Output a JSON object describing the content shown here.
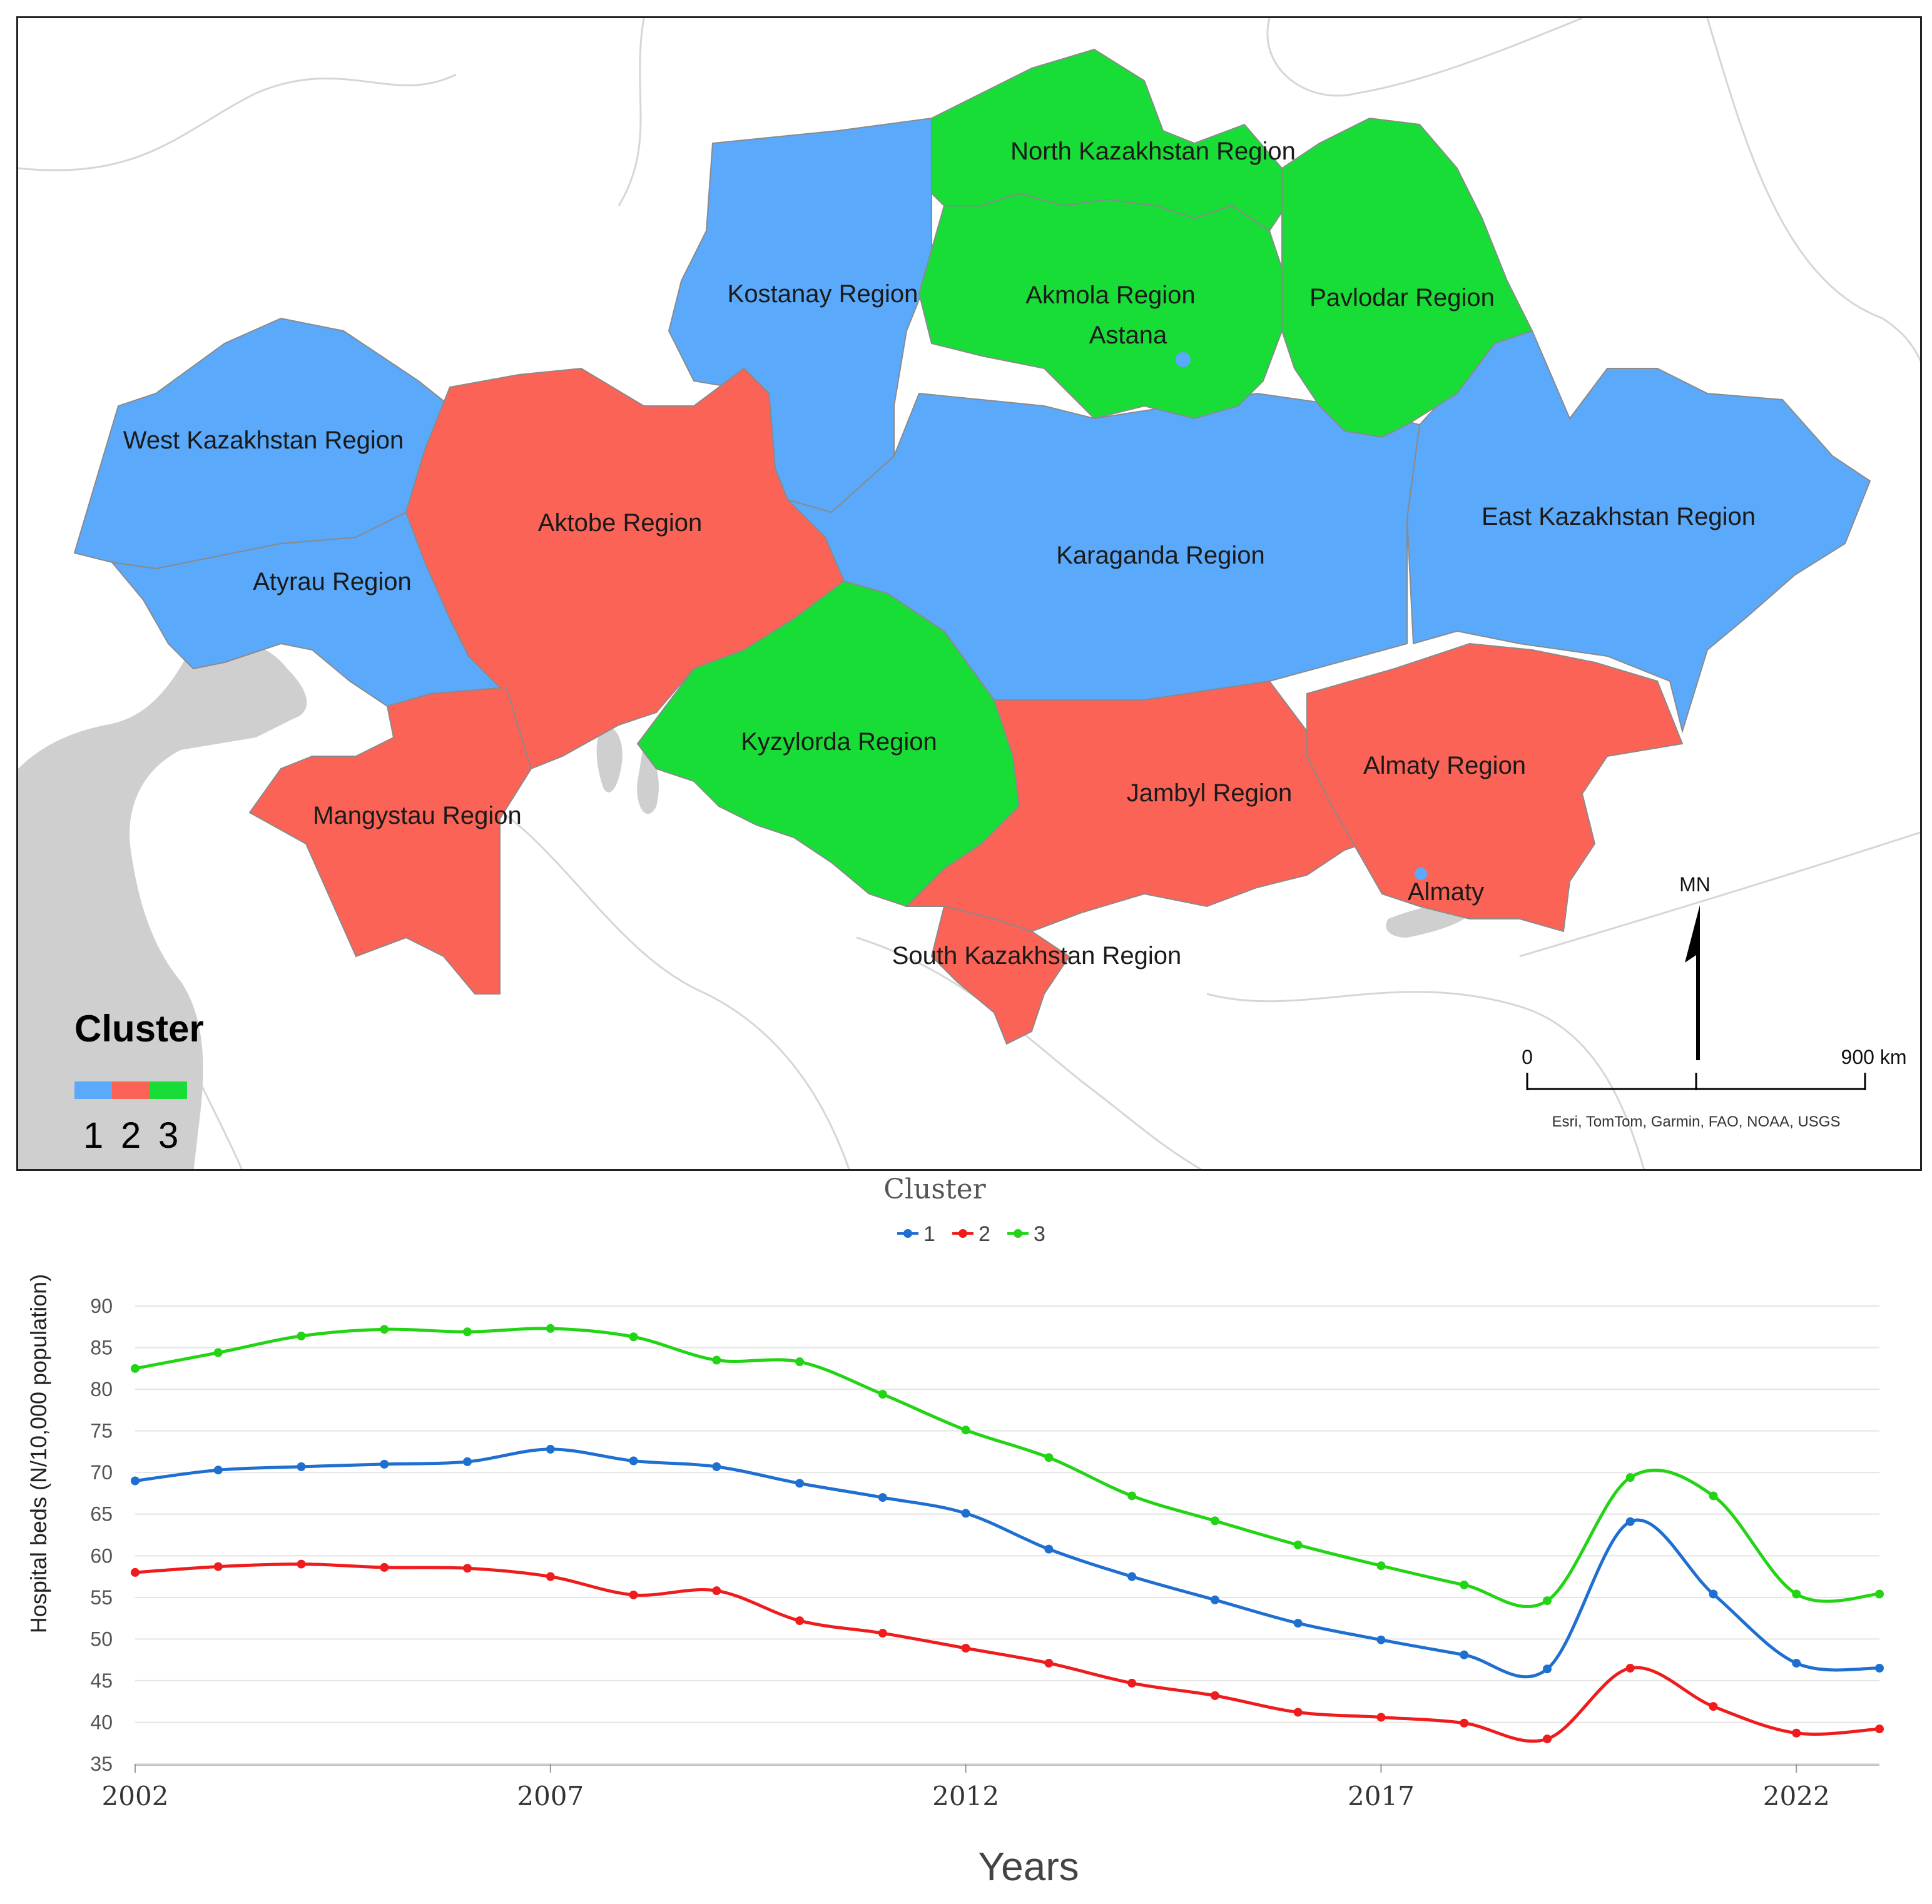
{
  "map": {
    "colors": {
      "cluster1": "#5aa9fb",
      "cluster2": "#fb6356",
      "cluster3": "#19dd37",
      "water": "#cfcfcf",
      "border": "#b8b8b8"
    },
    "regions": [
      {
        "key": "north_kazakhstan",
        "label": "North Kazakhstan Region",
        "cluster": 3
      },
      {
        "key": "akmola",
        "label": "Akmola Region",
        "cluster": 3
      },
      {
        "key": "pavlodar",
        "label": "Pavlodar Region",
        "cluster": 3
      },
      {
        "key": "kostanay",
        "label": "Kostanay Region",
        "cluster": 1
      },
      {
        "key": "west_kazakhstan",
        "label": "West Kazakhstan Region",
        "cluster": 1
      },
      {
        "key": "aktobe",
        "label": "Aktobe Region",
        "cluster": 2
      },
      {
        "key": "karaganda",
        "label": "Karaganda Region",
        "cluster": 1
      },
      {
        "key": "east_kazakhstan",
        "label": "East Kazakhstan Region",
        "cluster": 1
      },
      {
        "key": "atyrau",
        "label": "Atyrau Region",
        "cluster": 1
      },
      {
        "key": "kyzylorda",
        "label": "Kyzylorda Region",
        "cluster": 3
      },
      {
        "key": "almaty_region",
        "label": "Almaty Region",
        "cluster": 2
      },
      {
        "key": "jambyl",
        "label": "Jambyl Region",
        "cluster": 2
      },
      {
        "key": "mangystau",
        "label": "Mangystau Region",
        "cluster": 2
      },
      {
        "key": "south_kazakhstan",
        "label": "South Kazakhstan Region",
        "cluster": 2
      }
    ],
    "cities": {
      "astana": "Astana",
      "almaty": "Almaty"
    },
    "legend": {
      "title": "Cluster",
      "items": [
        "1",
        "2",
        "3"
      ]
    },
    "north_arrow": "MN",
    "scale": {
      "start": "0",
      "end": "900 km"
    },
    "attribution": "Esri, TomTom, Garmin, FAO, NOAA, USGS"
  },
  "chart_data": {
    "type": "line",
    "legend_title": "Cluster",
    "xlabel": "Years",
    "ylabel": "Hospital beds (N/10,000 population)",
    "ylim": [
      35,
      90
    ],
    "yticks": [
      35,
      40,
      45,
      50,
      55,
      60,
      65,
      70,
      75,
      80,
      85,
      90
    ],
    "xticks": [
      2002,
      2007,
      2012,
      2017,
      2022
    ],
    "xlim": [
      2002,
      2023
    ],
    "x": [
      2002,
      2003,
      2004,
      2005,
      2006,
      2007,
      2008,
      2009,
      2010,
      2011,
      2012,
      2013,
      2014,
      2015,
      2016,
      2017,
      2018,
      2019,
      2020,
      2021,
      2022,
      2023
    ],
    "series": [
      {
        "name": "1",
        "color": "#1f6fd1",
        "values": [
          69.0,
          70.3,
          70.7,
          71.0,
          71.3,
          72.8,
          71.4,
          70.7,
          68.7,
          67.0,
          65.1,
          60.8,
          57.5,
          54.7,
          51.9,
          49.9,
          48.1,
          46.4,
          64.1,
          55.4,
          47.1,
          46.5
        ]
      },
      {
        "name": "2",
        "color": "#ee1c1c",
        "values": [
          58.0,
          58.7,
          59.0,
          58.6,
          58.5,
          57.5,
          55.3,
          55.8,
          52.2,
          50.7,
          48.9,
          47.1,
          44.7,
          43.2,
          41.2,
          40.6,
          39.9,
          38.0,
          46.5,
          41.9,
          38.7,
          39.2
        ]
      },
      {
        "name": "3",
        "color": "#22d414",
        "values": [
          82.5,
          84.4,
          86.4,
          87.2,
          86.9,
          87.3,
          86.3,
          83.5,
          83.3,
          79.4,
          75.1,
          71.8,
          67.2,
          64.2,
          61.3,
          58.8,
          56.5,
          54.6,
          69.4,
          67.2,
          55.4,
          55.4
        ]
      }
    ]
  }
}
